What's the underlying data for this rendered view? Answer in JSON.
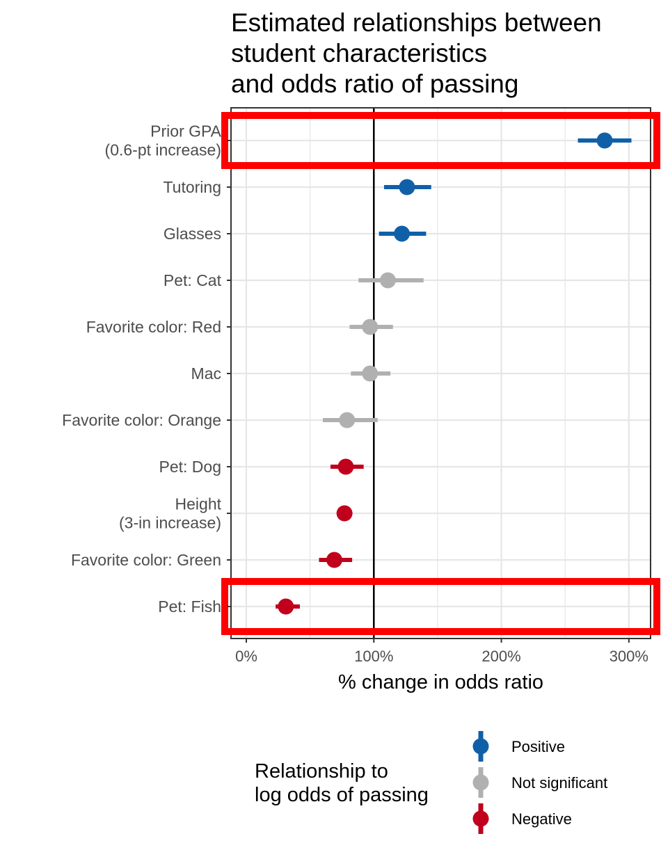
{
  "chart_data": {
    "type": "scatter",
    "title_lines": [
      "Estimated relationships between",
      "student characteristics",
      "and odds ratio of passing"
    ],
    "xlabel": "% change in odds ratio",
    "xlim": [
      -12,
      317
    ],
    "x_ticks": [
      0,
      100,
      200,
      300
    ],
    "x_tick_labels": [
      "0%",
      "100%",
      "200%",
      "300%"
    ],
    "reference_line_x": 100,
    "grid": true,
    "categories": [
      {
        "label_lines": [
          "Prior GPA",
          "(0.6-pt increase)"
        ],
        "estimate": 281,
        "low": 260,
        "high": 302,
        "sig": "Positive",
        "highlighted": true
      },
      {
        "label_lines": [
          "Tutoring"
        ],
        "estimate": 126,
        "low": 108,
        "high": 145,
        "sig": "Positive",
        "highlighted": false
      },
      {
        "label_lines": [
          "Glasses"
        ],
        "estimate": 122,
        "low": 104,
        "high": 141,
        "sig": "Positive",
        "highlighted": false
      },
      {
        "label_lines": [
          "Pet: Cat"
        ],
        "estimate": 111,
        "low": 88,
        "high": 139,
        "sig": "Not significant",
        "highlighted": false
      },
      {
        "label_lines": [
          "Favorite color: Red"
        ],
        "estimate": 97,
        "low": 81,
        "high": 115,
        "sig": "Not significant",
        "highlighted": false
      },
      {
        "label_lines": [
          "Mac"
        ],
        "estimate": 97,
        "low": 82,
        "high": 113,
        "sig": "Not significant",
        "highlighted": false
      },
      {
        "label_lines": [
          "Favorite color: Orange"
        ],
        "estimate": 79,
        "low": 60,
        "high": 103,
        "sig": "Not significant",
        "highlighted": false
      },
      {
        "label_lines": [
          "Pet: Dog"
        ],
        "estimate": 78,
        "low": 66,
        "high": 92,
        "sig": "Negative",
        "highlighted": false
      },
      {
        "label_lines": [
          "Height",
          "(3-in increase)"
        ],
        "estimate": 77,
        "low": 75,
        "high": 80,
        "sig": "Negative",
        "highlighted": false
      },
      {
        "label_lines": [
          "Favorite color: Green"
        ],
        "estimate": 69,
        "low": 57,
        "high": 83,
        "sig": "Negative",
        "highlighted": false
      },
      {
        "label_lines": [
          "Pet: Fish"
        ],
        "estimate": 31,
        "low": 23,
        "high": 42,
        "sig": "Negative",
        "highlighted": true
      }
    ],
    "legend": {
      "title_lines": [
        "Relationship to",
        "log odds of passing"
      ],
      "placement": "bottom",
      "entries": [
        {
          "label": "Positive",
          "color": "#1060a8"
        },
        {
          "label": "Not significant",
          "color": "#b0b0b0"
        },
        {
          "label": "Negative",
          "color": "#c0001c"
        }
      ]
    },
    "colors": {
      "Positive": "#1060a8",
      "Not significant": "#b0b0b0",
      "Negative": "#c0001c",
      "highlight_box": "#ff0000",
      "grid": "#e6e6e6",
      "panel_border": "#333333",
      "reference_line": "#000000"
    }
  }
}
